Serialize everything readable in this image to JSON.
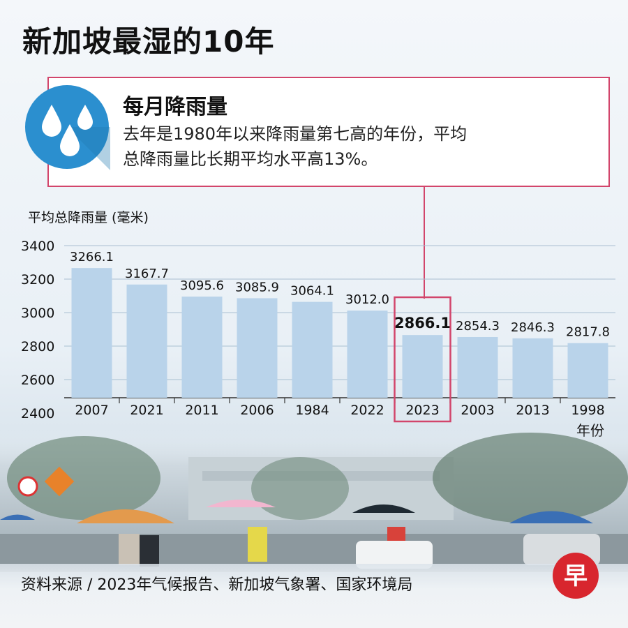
{
  "title": "新加坡最湿的10年",
  "callout": {
    "heading": "每月降雨量",
    "line1": "去年是1980年以来降雨量第七高的年份，平均",
    "line2": "总降雨量比长期平均水平高13%。"
  },
  "source": "资料来源 / 2023年气候报告、新加坡气象署、国家环境局",
  "logo_char": "早",
  "colors": {
    "bar": "#b9d3ea",
    "highlight_border": "#d2456b",
    "grid": "#a9bfd1",
    "icon_circle": "#2b8fcf"
  },
  "chart_data": {
    "type": "bar",
    "ylabel": "平均总降雨量 (毫米)",
    "xlabel": "年份",
    "categories": [
      "2007",
      "2021",
      "2011",
      "2006",
      "1984",
      "2022",
      "2023",
      "2003",
      "2013",
      "1998"
    ],
    "values": [
      3266.1,
      3167.7,
      3095.6,
      3085.9,
      3064.1,
      3012.0,
      2866.1,
      2854.3,
      2846.3,
      2817.8
    ],
    "value_labels": [
      "3266.1",
      "3167.7",
      "3095.6",
      "3085.9",
      "3064.1",
      "3012.0",
      "2866.1",
      "2854.3",
      "2846.3",
      "2817.8"
    ],
    "ylim": [
      2400,
      3400
    ],
    "yticks": [
      "3400",
      "3200",
      "3000",
      "2800",
      "2600",
      "2400"
    ],
    "highlight": "2023",
    "grid": true
  }
}
